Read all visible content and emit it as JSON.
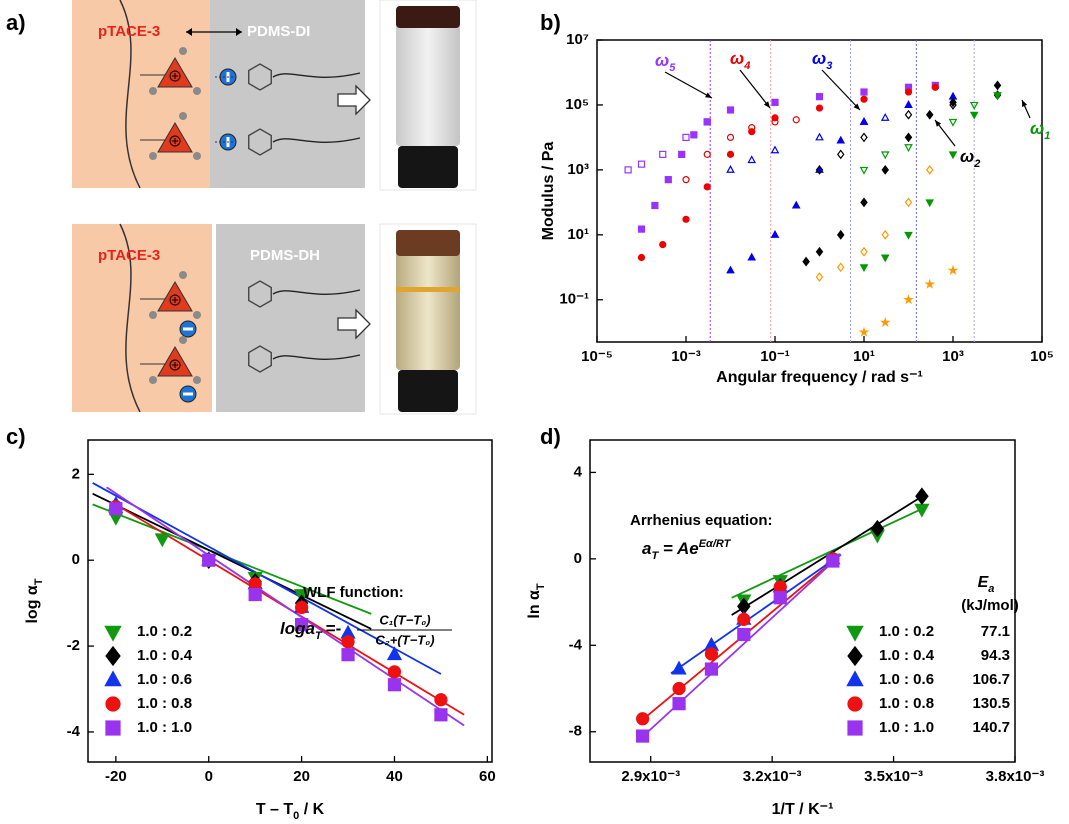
{
  "panel_a": {
    "label": "a)",
    "top": {
      "polymer": "pTACE-3",
      "partner": "PDMS-DI"
    },
    "bottom": {
      "polymer": "pTACE-3",
      "partner": "PDMS-DH"
    }
  },
  "chart_data": [
    {
      "type": "scatter",
      "panel_label": "b)",
      "xlabel": "Angular frequency / rad s⁻¹",
      "ylabel": "Modulus / Pa",
      "log_x": true,
      "log_y": true,
      "xlim": [
        1e-05,
        100000
      ],
      "ylim": [
        0.005,
        10000000
      ],
      "xticks": [
        {
          "value": 1e-05,
          "label": "10⁻⁵"
        },
        {
          "value": 0.001,
          "label": "10⁻³"
        },
        {
          "value": 0.1,
          "label": "10⁻¹"
        },
        {
          "value": 10,
          "label": "10¹"
        },
        {
          "value": 1000,
          "label": "10³"
        },
        {
          "value": 100000,
          "label": "10⁵"
        }
      ],
      "yticks": [
        {
          "value": 0.1,
          "label": "10⁻¹"
        },
        {
          "value": 10,
          "label": "10¹"
        },
        {
          "value": 1000,
          "label": "10³"
        },
        {
          "value": 100000,
          "label": "10⁵"
        },
        {
          "value": 10000000,
          "label": "10⁷"
        }
      ],
      "reference_lines": [
        {
          "x": 0.0035,
          "color": "#9933ff"
        },
        {
          "x": 0.08,
          "color": "#ff9999"
        },
        {
          "x": 5,
          "color": "#9999ff"
        },
        {
          "x": 150,
          "color": "#6666cc"
        },
        {
          "x": 3000,
          "color": "#b0b0ee"
        }
      ],
      "annotations": [
        {
          "symbol": "ω",
          "subscript": "5",
          "color": "#9933ff"
        },
        {
          "symbol": "ω",
          "subscript": "4",
          "color": "#ee0000"
        },
        {
          "symbol": "ω",
          "subscript": "3",
          "color": "#0000ee"
        },
        {
          "symbol": "ω",
          "subscript": "2",
          "color": "#000000"
        },
        {
          "symbol": "ω",
          "subscript": "1",
          "color": "#009900"
        }
      ],
      "series": [
        {
          "color": "#9933ff",
          "marker": "square",
          "filled": true,
          "x": [
            0.0001,
            0.0002,
            0.0004,
            0.0008,
            0.0015,
            0.003,
            0.01,
            0.1,
            1,
            10,
            100,
            400
          ],
          "values": [
            15,
            80,
            500,
            3000,
            12000,
            30000,
            70000,
            120000,
            180000,
            250000,
            350000,
            400000
          ]
        },
        {
          "color": "#9933ff",
          "marker": "square",
          "filled": false,
          "x": [
            5e-05,
            0.0001,
            0.0003,
            0.001,
            0.003
          ],
          "values": [
            1000,
            1500,
            3000,
            10000,
            30000
          ]
        },
        {
          "color": "#ee0000",
          "marker": "circle",
          "filled": true,
          "x": [
            0.0001,
            0.0003,
            0.001,
            0.003,
            0.01,
            0.03,
            0.1,
            1,
            10,
            100,
            400
          ],
          "values": [
            2,
            5,
            30,
            300,
            3000,
            15000,
            40000,
            80000,
            150000,
            250000,
            350000
          ]
        },
        {
          "color": "#ee0000",
          "marker": "circle",
          "filled": false,
          "x": [
            0.001,
            0.003,
            0.01,
            0.03,
            0.1,
            0.3
          ],
          "values": [
            500,
            3000,
            10000,
            20000,
            30000,
            35000
          ]
        },
        {
          "color": "#0000ee",
          "marker": "triangle",
          "filled": true,
          "x": [
            0.01,
            0.03,
            0.1,
            0.3,
            1,
            3,
            10,
            100,
            1000
          ],
          "values": [
            0.8,
            2,
            10,
            80,
            1000,
            8000,
            30000,
            100000,
            180000
          ]
        },
        {
          "color": "#0000ee",
          "marker": "triangle",
          "filled": false,
          "x": [
            0.01,
            0.03,
            0.1,
            1,
            10,
            30
          ],
          "values": [
            1000,
            2000,
            4000,
            10000,
            30000,
            40000
          ]
        },
        {
          "color": "#000000",
          "marker": "diamond",
          "filled": true,
          "x": [
            0.5,
            1,
            3,
            10,
            30,
            100,
            300,
            1000,
            10000
          ],
          "values": [
            1.5,
            3,
            10,
            100,
            1000,
            10000,
            50000,
            120000,
            400000
          ]
        },
        {
          "color": "#000000",
          "marker": "diamond",
          "filled": false,
          "x": [
            1,
            3,
            10,
            100,
            1000,
            10000
          ],
          "values": [
            1000,
            3000,
            10000,
            50000,
            100000,
            200000
          ]
        },
        {
          "color": "#009900",
          "marker": "triangle-down",
          "filled": true,
          "x": [
            10,
            30,
            100,
            300,
            1000,
            3000,
            10000
          ],
          "values": [
            1,
            2,
            10,
            100,
            3000,
            50000,
            200000
          ]
        },
        {
          "color": "#009900",
          "marker": "triangle-down",
          "filled": false,
          "x": [
            10,
            30,
            100,
            1000,
            3000
          ],
          "values": [
            1000,
            3000,
            5000,
            30000,
            100000
          ]
        },
        {
          "color": "#ff9900",
          "marker": "diamond",
          "filled": false,
          "x": [
            1,
            3,
            10,
            30,
            100,
            300
          ],
          "values": [
            0.5,
            1,
            3,
            10,
            100,
            1000
          ]
        },
        {
          "color": "#ff9900",
          "marker": "star",
          "filled": true,
          "x": [
            10,
            30,
            100,
            300,
            1000
          ],
          "values": [
            0.01,
            0.02,
            0.1,
            0.3,
            0.8
          ]
        }
      ]
    },
    {
      "type": "scatter",
      "panel_label": "c)",
      "xlabel": "T – T",
      "xlabel_sub": "0",
      "xlabel_after": " / K",
      "ylabel": "log α",
      "ylabel_sub": "T",
      "xlim": [
        -26,
        61
      ],
      "ylim": [
        -4.7,
        2.8
      ],
      "xticks": [
        -20,
        0,
        20,
        40,
        60
      ],
      "yticks": [
        -4,
        -2,
        0,
        2
      ],
      "annotation_title": "WLF function:",
      "formula": {
        "lhs": "loga",
        "lhs_sub": "T",
        "sign": "=-",
        "numerator": "C₁(T−T₀)",
        "denominator": "C₂+(T−T₀)"
      },
      "series": [
        {
          "name": "1.0 : 0.2",
          "color": "#119911",
          "marker": "triangle-down",
          "x": [
            -20,
            -10,
            0,
            10,
            20
          ],
          "values": [
            1.0,
            0.5,
            0,
            -0.4,
            -0.8
          ],
          "fit_x": [
            -25,
            35
          ],
          "fit_values": [
            1.3,
            -1.25
          ]
        },
        {
          "name": "1.0 : 0.4",
          "color": "#000000",
          "marker": "diamond",
          "x": [
            -20,
            0,
            10,
            20
          ],
          "values": [
            1.25,
            0,
            -0.5,
            -1.0
          ],
          "fit_x": [
            -25,
            35
          ],
          "fit_values": [
            1.55,
            -1.6
          ]
        },
        {
          "name": "1.0 : 0.6",
          "color": "#1133ee",
          "marker": "triangle",
          "x": [
            -20,
            0,
            10,
            20,
            30,
            40
          ],
          "values": [
            1.3,
            0,
            -0.55,
            -1.1,
            -1.7,
            -2.2
          ],
          "fit_x": [
            -25,
            50
          ],
          "fit_values": [
            1.8,
            -2.65
          ]
        },
        {
          "name": "1.0 : 0.8",
          "color": "#ee1111",
          "marker": "circle",
          "x": [
            -20,
            0,
            10,
            20,
            30,
            40,
            50
          ],
          "values": [
            1.25,
            0,
            -0.55,
            -1.1,
            -1.9,
            -2.6,
            -3.25
          ],
          "fit_x": [
            -20,
            55
          ],
          "fit_values": [
            1.3,
            -3.6
          ]
        },
        {
          "name": "1.0 : 1.0",
          "color": "#9933ee",
          "marker": "square",
          "x": [
            -20,
            0,
            10,
            20,
            30,
            40,
            50
          ],
          "values": [
            1.2,
            0,
            -0.8,
            -1.5,
            -2.2,
            -2.9,
            -3.6
          ],
          "fit_x": [
            -22,
            55
          ],
          "fit_values": [
            1.7,
            -3.85
          ]
        }
      ]
    },
    {
      "type": "scatter",
      "panel_label": "d)",
      "xlabel": "1/T / K⁻¹",
      "ylabel": "ln α",
      "ylabel_sub": "T",
      "xlim": [
        0.00275,
        0.0038
      ],
      "ylim": [
        -9.4,
        5.5
      ],
      "xticks": [
        {
          "value": 0.0029,
          "label": "2.9x10⁻³"
        },
        {
          "value": 0.0032,
          "label": "3.2x10⁻³"
        },
        {
          "value": 0.0035,
          "label": "3.5x10⁻³"
        },
        {
          "value": 0.0038,
          "label": "3.8x10⁻³"
        }
      ],
      "yticks": [
        -8,
        -4,
        0,
        4
      ],
      "annotation_title": "Arrhenius equation:",
      "formula": {
        "lhs": "a",
        "lhs_sub": "T",
        "rhs": " = Ae",
        "sup": "Eα/RT"
      },
      "legend_header": "E",
      "legend_header_sub": "a",
      "legend_unit": "(kJ/mol)",
      "series": [
        {
          "name": "1.0 : 0.2",
          "ea": 77.1,
          "color": "#119911",
          "marker": "triangle-down",
          "x": [
            0.00313,
            0.00322,
            0.00335,
            0.00346,
            0.00357
          ],
          "values": [
            -1.9,
            -1.0,
            0,
            1.1,
            2.3
          ],
          "fit_x": [
            0.0031,
            0.00358
          ],
          "fit_values": [
            -1.8,
            2.4
          ]
        },
        {
          "name": "1.0 : 0.4",
          "ea": 94.3,
          "color": "#000000",
          "marker": "diamond",
          "x": [
            0.00313,
            0.00322,
            0.00335,
            0.00346,
            0.00357
          ],
          "values": [
            -2.2,
            -1.3,
            0,
            1.4,
            2.9
          ],
          "fit_x": [
            0.0031,
            0.00358
          ],
          "fit_values": [
            -2.6,
            3.0
          ]
        },
        {
          "name": "1.0 : 0.6",
          "ea": 106.7,
          "color": "#1133ee",
          "marker": "triangle",
          "x": [
            0.00297,
            0.00305,
            0.00313,
            0.00322,
            0.00335
          ],
          "values": [
            -5.1,
            -4.0,
            -2.8,
            -1.3,
            0
          ],
          "fit_x": [
            0.00295,
            0.00337
          ],
          "fit_values": [
            -5.3,
            0.2
          ]
        },
        {
          "name": "1.0 : 0.8",
          "ea": 130.5,
          "color": "#ee1111",
          "marker": "circle",
          "x": [
            0.00288,
            0.00297,
            0.00305,
            0.00313,
            0.00322,
            0.00335
          ],
          "values": [
            -7.4,
            -6.0,
            -4.4,
            -2.8,
            -1.3,
            0
          ],
          "fit_x": [
            0.00287,
            0.00337
          ],
          "fit_values": [
            -7.6,
            0.2
          ]
        },
        {
          "name": "1.0 : 1.0",
          "ea": 140.7,
          "color": "#9933ee",
          "marker": "square",
          "x": [
            0.00288,
            0.00297,
            0.00305,
            0.00313,
            0.00322,
            0.00335
          ],
          "values": [
            -8.2,
            -6.7,
            -5.1,
            -3.5,
            -1.8,
            -0.1
          ],
          "fit_x": [
            0.00287,
            0.00337
          ],
          "fit_values": [
            -8.4,
            0.2
          ]
        }
      ]
    }
  ]
}
